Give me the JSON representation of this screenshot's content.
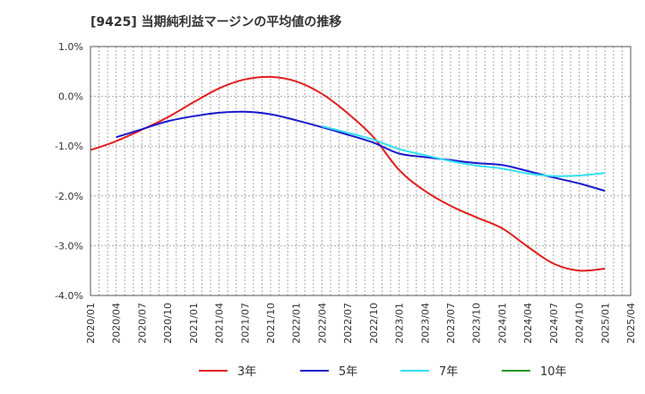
{
  "chart_data": {
    "type": "line",
    "title": "[9425]  当期純利益マージンの平均値の推移",
    "xlabel": "",
    "ylabel": "",
    "ylim": [
      -4.0,
      1.0
    ],
    "yticks": [
      "1.0%",
      "0.0%",
      "-1.0%",
      "-2.0%",
      "-3.0%",
      "-4.0%"
    ],
    "xticks": [
      "2020/01",
      "2020/04",
      "2020/07",
      "2020/10",
      "2021/01",
      "2021/04",
      "2021/07",
      "2021/10",
      "2022/01",
      "2022/04",
      "2022/07",
      "2022/10",
      "2023/01",
      "2023/04",
      "2023/07",
      "2023/10",
      "2024/01",
      "2024/04",
      "2024/07",
      "2024/10",
      "2025/01",
      "2025/04"
    ],
    "grid": true,
    "legend_position": "bottom",
    "series": [
      {
        "name": "3年",
        "color": "#e0201f",
        "points": [
          [
            "2020/01",
            -1.08
          ],
          [
            "2020/04",
            -0.9
          ],
          [
            "2020/07",
            -0.67
          ],
          [
            "2020/10",
            -0.42
          ],
          [
            "2021/01",
            -0.12
          ],
          [
            "2021/04",
            0.16
          ],
          [
            "2021/07",
            0.34
          ],
          [
            "2021/10",
            0.39
          ],
          [
            "2022/01",
            0.3
          ],
          [
            "2022/04",
            0.05
          ],
          [
            "2022/07",
            -0.34
          ],
          [
            "2022/10",
            -0.82
          ],
          [
            "2023/01",
            -1.48
          ],
          [
            "2023/04",
            -1.9
          ],
          [
            "2023/07",
            -2.2
          ],
          [
            "2023/10",
            -2.43
          ],
          [
            "2024/01",
            -2.65
          ],
          [
            "2024/04",
            -3.02
          ],
          [
            "2024/07",
            -3.36
          ],
          [
            "2024/10",
            -3.5
          ],
          [
            "2025/01",
            -3.46
          ]
        ]
      },
      {
        "name": "5年",
        "color": "#1a1acc",
        "points": [
          [
            "2020/04",
            -0.82
          ],
          [
            "2020/07",
            -0.66
          ],
          [
            "2020/10",
            -0.5
          ],
          [
            "2021/01",
            -0.4
          ],
          [
            "2021/04",
            -0.33
          ],
          [
            "2021/07",
            -0.31
          ],
          [
            "2021/10",
            -0.36
          ],
          [
            "2022/01",
            -0.48
          ],
          [
            "2022/04",
            -0.62
          ],
          [
            "2022/07",
            -0.77
          ],
          [
            "2022/10",
            -0.93
          ],
          [
            "2023/01",
            -1.15
          ],
          [
            "2023/04",
            -1.22
          ],
          [
            "2023/07",
            -1.28
          ],
          [
            "2023/10",
            -1.34
          ],
          [
            "2024/01",
            -1.38
          ],
          [
            "2024/04",
            -1.5
          ],
          [
            "2024/07",
            -1.63
          ],
          [
            "2024/10",
            -1.75
          ],
          [
            "2025/01",
            -1.9
          ]
        ]
      },
      {
        "name": "7年",
        "color": "#33e0f0",
        "points": [
          [
            "2022/04",
            -0.6
          ],
          [
            "2022/07",
            -0.73
          ],
          [
            "2022/10",
            -0.87
          ],
          [
            "2023/01",
            -1.06
          ],
          [
            "2023/04",
            -1.18
          ],
          [
            "2023/07",
            -1.3
          ],
          [
            "2023/10",
            -1.39
          ],
          [
            "2024/01",
            -1.45
          ],
          [
            "2024/04",
            -1.55
          ],
          [
            "2024/07",
            -1.6
          ],
          [
            "2024/10",
            -1.59
          ],
          [
            "2025/01",
            -1.54
          ]
        ]
      },
      {
        "name": "10年",
        "color": "#229922",
        "points": []
      }
    ]
  }
}
